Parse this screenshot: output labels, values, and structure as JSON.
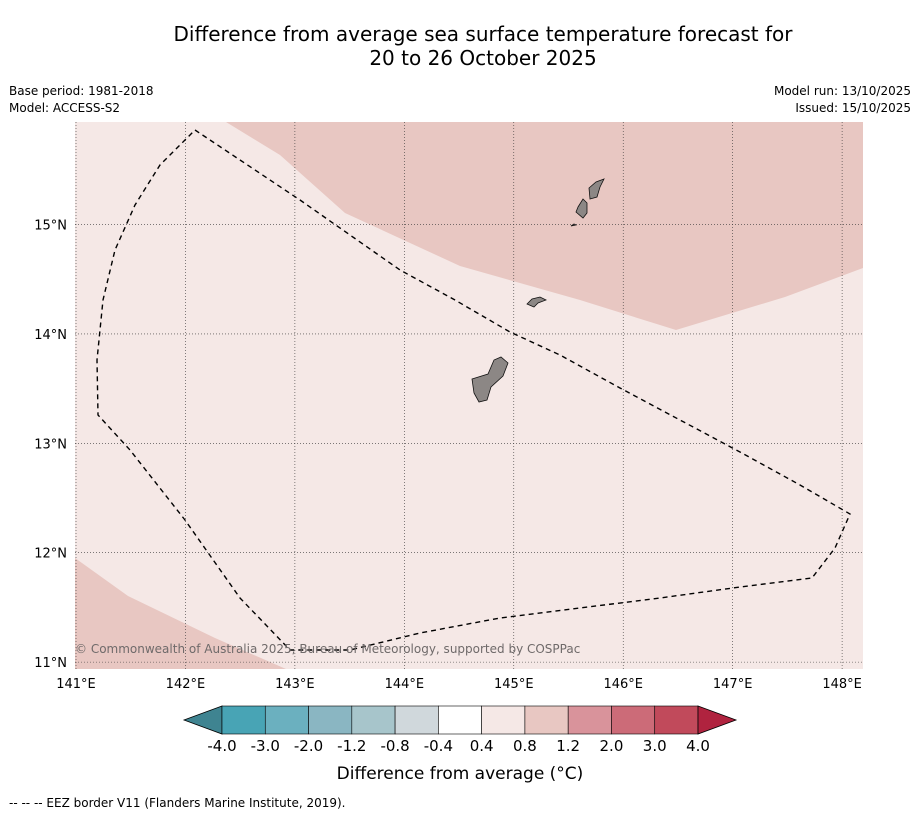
{
  "title": {
    "line1": "Difference from average sea surface temperature forecast for",
    "line2": "20 to 26 October 2025"
  },
  "meta_left": {
    "base_period": "Base period: 1981-2018",
    "model": "Model: ACCESS-S2"
  },
  "meta_right": {
    "model_run": "Model run: 13/10/2025",
    "issued": "Issued: 15/10/2025"
  },
  "map": {
    "lon_range": [
      141.0,
      148.2
    ],
    "lat_range": [
      10.8,
      15.8
    ],
    "lon_ticks": [
      "141°E",
      "142°E",
      "143°E",
      "144°E",
      "145°E",
      "146°E",
      "147°E",
      "148°E"
    ],
    "lat_ticks": [
      "15°N",
      "14°N",
      "13°N",
      "12°N",
      "11°N"
    ],
    "background_category": "0.4 to 0.8",
    "warm_region_category": "0.8 to 1.2",
    "copyright": "© Commonwealth of Australia 2025, Bureau of Meteorology, supported by COSPPac",
    "colors": {
      "bg_fill": "#f5e8e6",
      "warm_fill": "#e8c7c2",
      "land": "#8c8785",
      "eez": "#000000"
    }
  },
  "colorbar": {
    "labels": [
      "-4.0",
      "-3.0",
      "-2.0",
      "-1.2",
      "-0.8",
      "-0.4",
      "0.4",
      "0.8",
      "1.2",
      "2.0",
      "3.0",
      "4.0"
    ],
    "colors": [
      "#48a4b5",
      "#6bb0bf",
      "#8ab6c2",
      "#a7c5cb",
      "#d0d8dc",
      "#ffffff",
      "#f5e8e6",
      "#e8c7c2",
      "#d9939b",
      "#cc6b78",
      "#c14a5b"
    ],
    "low_extend_color": "#3f8491",
    "high_extend_color": "#b0233f",
    "label": "Difference from average (°C)"
  },
  "footer": "--  --  -- EEZ border V11 (Flanders Marine Institute, 2019)."
}
